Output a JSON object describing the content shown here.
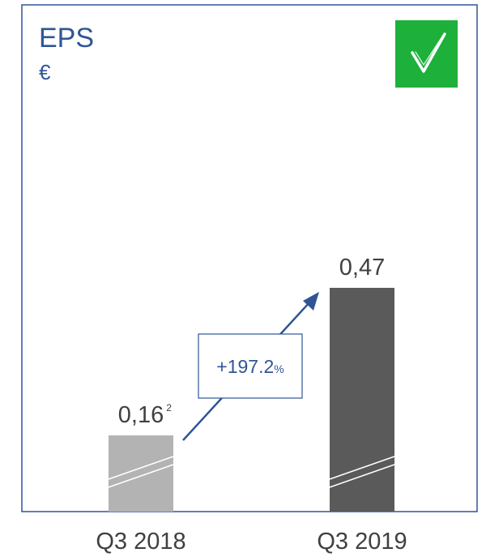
{
  "chart_data": {
    "type": "bar",
    "title": "EPS",
    "unit": "€",
    "categories": [
      "Q3 2018",
      "Q3 2019"
    ],
    "values": [
      0.16,
      0.47
    ],
    "value_labels": [
      "0,16",
      "0,47"
    ],
    "footnote_marker": "2",
    "change": {
      "value": "+197.2",
      "unit": "%"
    },
    "ylim": [
      0,
      0.47
    ],
    "grid": false,
    "legend": "none"
  },
  "colors": {
    "frame": "#2f5597",
    "title": "#2f5597",
    "bar_2018": "#b3b3b3",
    "bar_2019": "#5a5a5a",
    "check_bg": "#1db03a",
    "arrow": "#2f5597"
  },
  "icons": {
    "status": "checkmark-icon"
  }
}
